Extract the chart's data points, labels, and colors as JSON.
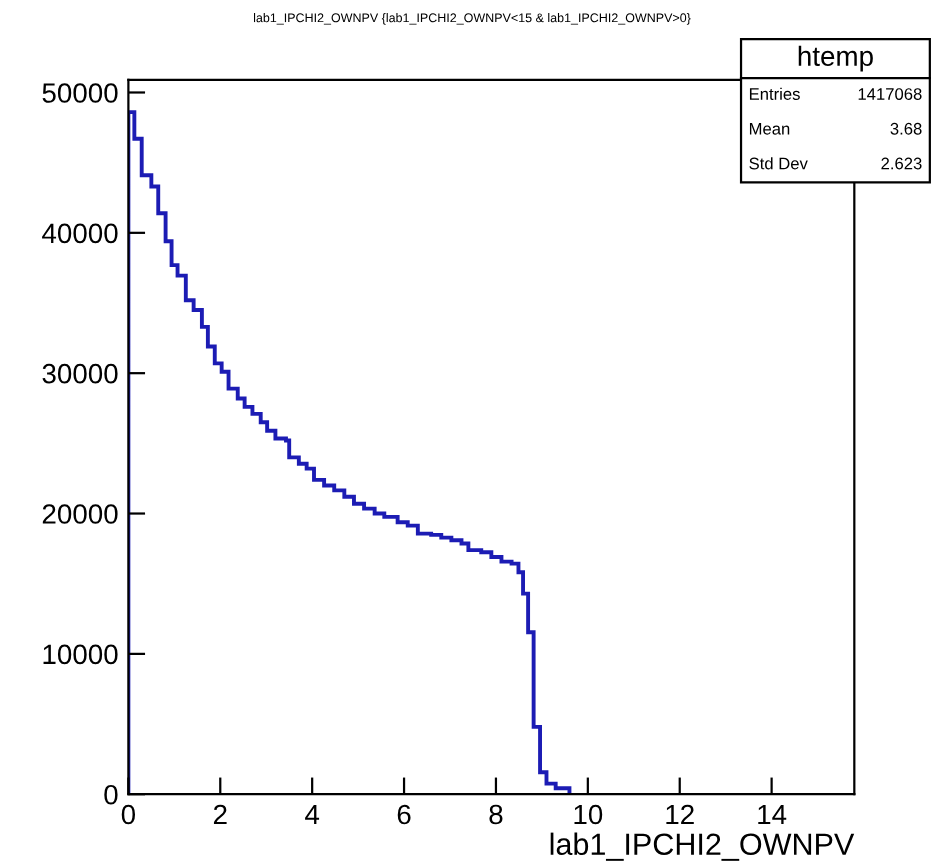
{
  "chart_data": {
    "type": "histogram",
    "title": "lab1_IPCHI2_OWNPV {lab1_IPCHI2_OWNPV<15 & lab1_IPCHI2_OWNPV>0}",
    "xlabel": "lab1_IPCHI2_OWNPV",
    "bins": [
      0,
      0.13,
      0.29,
      0.5,
      0.65,
      0.81,
      0.94,
      1.07,
      1.25,
      1.42,
      1.6,
      1.73,
      1.88,
      2.03,
      2.18,
      2.38,
      2.53,
      2.7,
      2.88,
      3.02,
      3.2,
      3.43,
      3.5,
      3.71,
      3.88,
      4.04,
      4.26,
      4.48,
      4.7,
      4.91,
      5.13,
      5.36,
      5.57,
      5.86,
      6.08,
      6.3,
      6.59,
      6.81,
      7.03,
      7.25,
      7.4,
      7.68,
      7.9,
      8.12,
      8.34,
      8.49,
      8.59,
      8.7,
      8.82,
      8.96,
      9.1,
      9.3,
      9.6
    ],
    "values": [
      48600,
      46700,
      44100,
      43300,
      41400,
      39400,
      37700,
      36950,
      35200,
      34500,
      33300,
      31900,
      30700,
      30100,
      28900,
      28200,
      27600,
      27100,
      26500,
      25900,
      25350,
      25200,
      24000,
      23550,
      23200,
      22400,
      22000,
      21650,
      21200,
      20700,
      20350,
      20000,
      19760,
      19380,
      19140,
      18570,
      18480,
      18280,
      18100,
      17860,
      17390,
      17240,
      16900,
      16570,
      16430,
      15820,
      14290,
      11540,
      4800,
      1570,
      755,
      430
    ],
    "color": "#1c1cb4",
    "xlim": [
      0,
      15.8
    ],
    "xticks": [
      0,
      2,
      4,
      6,
      8,
      10,
      12,
      14
    ],
    "ylim": [
      0,
      50900
    ],
    "yticks": [
      0,
      10000,
      20000,
      30000,
      40000,
      50000
    ],
    "grid": false,
    "legend": false,
    "annotations": [
      "htemp",
      "Entries   1417068",
      "Mean   3.68",
      "Std Dev   2.623"
    ]
  }
}
